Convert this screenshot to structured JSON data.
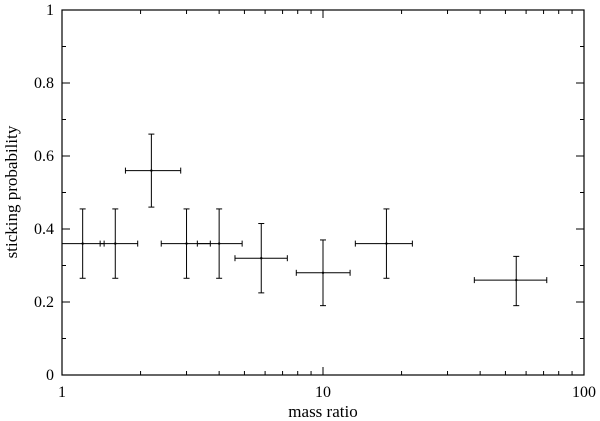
{
  "chart_data": {
    "type": "scatter",
    "title": "",
    "xlabel": "mass ratio",
    "ylabel": "sticking probability",
    "xscale": "log",
    "xlim": [
      1,
      100
    ],
    "ylim": [
      0,
      1
    ],
    "grid": false,
    "x_ticks": [
      "1",
      "10",
      "100"
    ],
    "y_ticks": [
      "0",
      "0.2",
      "0.4",
      "0.6",
      "0.8",
      "1"
    ],
    "series": [
      {
        "points": [
          {
            "x": 1.2,
            "y": 0.36,
            "xlo": 1.0,
            "xhi": 1.45,
            "ylo": 0.265,
            "yhi": 0.455
          },
          {
            "x": 1.6,
            "y": 0.36,
            "xlo": 1.4,
            "xhi": 1.95,
            "ylo": 0.265,
            "yhi": 0.455
          },
          {
            "x": 2.2,
            "y": 0.56,
            "xlo": 1.75,
            "xhi": 2.85,
            "ylo": 0.46,
            "yhi": 0.66
          },
          {
            "x": 3.0,
            "y": 0.36,
            "xlo": 2.4,
            "xhi": 3.7,
            "ylo": 0.265,
            "yhi": 0.455
          },
          {
            "x": 4.0,
            "y": 0.36,
            "xlo": 3.3,
            "xhi": 4.9,
            "ylo": 0.265,
            "yhi": 0.455
          },
          {
            "x": 5.8,
            "y": 0.32,
            "xlo": 4.6,
            "xhi": 7.3,
            "ylo": 0.225,
            "yhi": 0.415
          },
          {
            "x": 10.0,
            "y": 0.28,
            "xlo": 7.9,
            "xhi": 12.7,
            "ylo": 0.19,
            "yhi": 0.37
          },
          {
            "x": 17.5,
            "y": 0.36,
            "xlo": 13.3,
            "xhi": 22.0,
            "ylo": 0.265,
            "yhi": 0.455
          },
          {
            "x": 55.0,
            "y": 0.26,
            "xlo": 38.0,
            "xhi": 72.0,
            "ylo": 0.19,
            "yhi": 0.325
          }
        ]
      }
    ]
  }
}
